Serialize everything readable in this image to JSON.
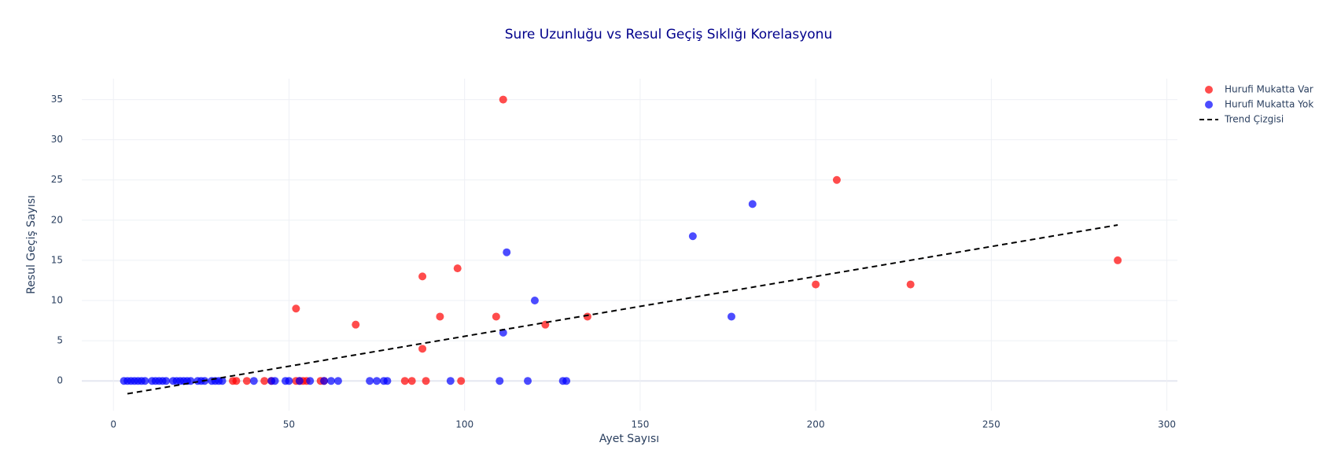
{
  "chart_data": {
    "type": "scatter",
    "title": "Sure Uzunluğu vs Resul Geçiş Sıklığı Korelasyonu",
    "x_label": "Ayet Sayısı",
    "y_label": "Resul Geçiş Sayısı",
    "xlim": [
      -9,
      303
    ],
    "ylim": [
      -3.7,
      37.6
    ],
    "xticks": [
      0,
      50,
      100,
      150,
      200,
      250,
      300
    ],
    "yticks": [
      0,
      5,
      10,
      15,
      20,
      25,
      30,
      35
    ],
    "grid": true,
    "opacity": 0.7,
    "legend": "top-right",
    "series": [
      {
        "name": "Hurufi Mukatta Var",
        "color": "#ff0000",
        "mode": "markers",
        "x": [
          111,
          206,
          200,
          227,
          286,
          98,
          88,
          52,
          69,
          93,
          109,
          123,
          135,
          88,
          34,
          35,
          38,
          43,
          45,
          52,
          53,
          54,
          55,
          59,
          60,
          83,
          85,
          89,
          99
        ],
        "values": [
          35,
          25,
          12,
          12,
          15,
          14,
          13,
          9,
          7,
          8,
          8,
          7,
          8,
          4,
          0,
          0,
          0,
          0,
          0,
          0,
          0,
          0,
          0,
          0,
          0,
          0,
          0,
          0,
          0
        ]
      },
      {
        "name": "Hurufi Mukatta Yok",
        "color": "#0000ff",
        "mode": "markers",
        "x": [
          182,
          165,
          112,
          120,
          176,
          111,
          3,
          4,
          5,
          6,
          7,
          8,
          9,
          11,
          12,
          13,
          14,
          15,
          17,
          18,
          19,
          20,
          21,
          22,
          24,
          25,
          26,
          28,
          29,
          30,
          31,
          40,
          45,
          46,
          49,
          50,
          53,
          56,
          60,
          62,
          64,
          73,
          75,
          77,
          78,
          96,
          110,
          118,
          128,
          129
        ],
        "values": [
          22,
          18,
          16,
          10,
          8,
          6,
          0,
          0,
          0,
          0,
          0,
          0,
          0,
          0,
          0,
          0,
          0,
          0,
          0,
          0,
          0,
          0,
          0,
          0,
          0,
          0,
          0,
          0,
          0,
          0,
          0,
          0,
          0,
          0,
          0,
          0,
          0,
          0,
          0,
          0,
          0,
          0,
          0,
          0,
          0,
          0,
          0,
          0,
          0,
          0
        ]
      },
      {
        "name": "Trend Çizgisi",
        "color": "#000000",
        "mode": "lines",
        "dash": "dash",
        "x": [
          4,
          286
        ],
        "values": [
          -1.6,
          19.4
        ]
      }
    ]
  }
}
